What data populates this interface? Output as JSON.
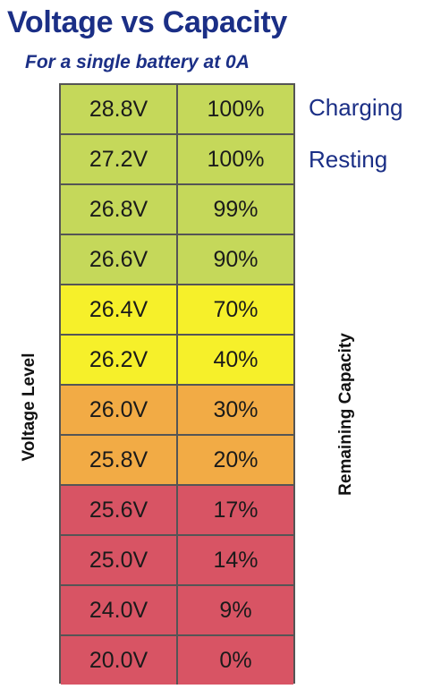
{
  "title": "Voltage vs Capacity",
  "subtitle": "For a single battery at 0A",
  "axis_left": "Voltage Level",
  "axis_right": "Remaining Capacity",
  "side_labels": [
    "Charging",
    "Resting"
  ],
  "colors": {
    "title": "#1b2f86",
    "green": "#c5d85a",
    "yellow": "#f6f02a",
    "orange": "#f2ab45",
    "red": "#d85464",
    "grid": "#555555"
  },
  "chart_data": {
    "type": "table",
    "title": "Voltage vs Capacity",
    "subtitle": "For a single battery at 0A",
    "columns": [
      "Voltage Level",
      "Remaining Capacity"
    ],
    "rows": [
      {
        "voltage": "28.8V",
        "capacity": "100%",
        "color": "green"
      },
      {
        "voltage": "27.2V",
        "capacity": "100%",
        "color": "green"
      },
      {
        "voltage": "26.8V",
        "capacity": "99%",
        "color": "green"
      },
      {
        "voltage": "26.6V",
        "capacity": "90%",
        "color": "green"
      },
      {
        "voltage": "26.4V",
        "capacity": "70%",
        "color": "yellow"
      },
      {
        "voltage": "26.2V",
        "capacity": "40%",
        "color": "yellow"
      },
      {
        "voltage": "26.0V",
        "capacity": "30%",
        "color": "orange"
      },
      {
        "voltage": "25.8V",
        "capacity": "20%",
        "color": "orange"
      },
      {
        "voltage": "25.6V",
        "capacity": "17%",
        "color": "red"
      },
      {
        "voltage": "25.0V",
        "capacity": "14%",
        "color": "red"
      },
      {
        "voltage": "24.0V",
        "capacity": "9%",
        "color": "red"
      },
      {
        "voltage": "20.0V",
        "capacity": "0%",
        "color": "red"
      }
    ]
  }
}
